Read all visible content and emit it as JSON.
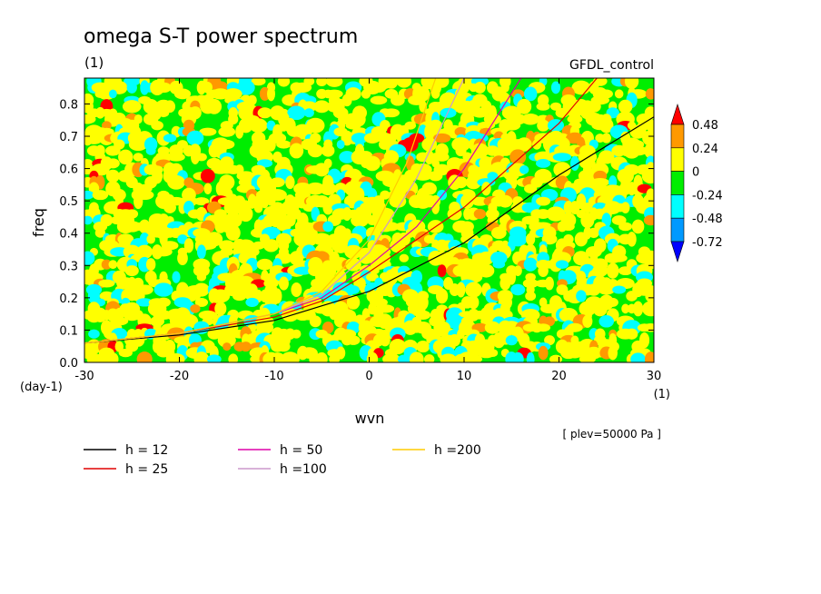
{
  "chart_data": {
    "type": "heatmap",
    "title": "omega S-T power spectrum",
    "subtitle_left": "(1)",
    "subtitle_right": "GFDL_control",
    "xlabel": "wvn",
    "ylabel": "freq",
    "x_units": "(1)",
    "y_units": "(day-1)",
    "annotation": "[ plev=50000 Pa ]",
    "xlim": [
      -30,
      30
    ],
    "ylim": [
      0.0,
      0.88
    ],
    "x_ticks": [
      "-30",
      "-20",
      "-10",
      "0",
      "10",
      "20",
      "30"
    ],
    "y_ticks": [
      "0.0",
      "0.1",
      "0.2",
      "0.3",
      "0.4",
      "0.5",
      "0.6",
      "0.7",
      "0.8"
    ],
    "x_tick_values": [
      -30,
      -20,
      -10,
      0,
      10,
      20,
      30
    ],
    "y_tick_values": [
      0.0,
      0.1,
      0.2,
      0.3,
      0.4,
      0.5,
      0.6,
      0.7,
      0.8
    ],
    "colorbar": {
      "levels": [
        "0.48",
        "0.24",
        "0",
        "-0.24",
        "-0.48",
        "-0.72"
      ],
      "colors": [
        "#ff0000",
        "#ff9900",
        "#ffff00",
        "#00ee00",
        "#00ffff",
        "#0099ff",
        "#0000ff"
      ],
      "extend": "both"
    },
    "field_description_colors": {
      "dominant": "#00ee00",
      "secondary": "#ffff00",
      "sparse": [
        "#00ffff",
        "#ff9900",
        "#ff0000"
      ]
    },
    "series": [
      {
        "name": "h = 12",
        "color": "#000000",
        "points": [
          [
            -30,
            0.06
          ],
          [
            -20,
            0.085
          ],
          [
            -10,
            0.13
          ],
          [
            0,
            0.22
          ],
          [
            10,
            0.37
          ],
          [
            20,
            0.58
          ],
          [
            30,
            0.76
          ]
        ]
      },
      {
        "name": "h = 25",
        "color": "#e00000",
        "points": [
          [
            -30,
            0.06
          ],
          [
            -20,
            0.09
          ],
          [
            -10,
            0.14
          ],
          [
            -5,
            0.19
          ],
          [
            0,
            0.28
          ],
          [
            10,
            0.48
          ],
          [
            20,
            0.74
          ],
          [
            24,
            0.88
          ]
        ]
      },
      {
        "name": "h = 50",
        "color": "#dd00aa",
        "points": [
          [
            -30,
            0.06
          ],
          [
            -20,
            0.09
          ],
          [
            -10,
            0.15
          ],
          [
            -5,
            0.2
          ],
          [
            0,
            0.3
          ],
          [
            5,
            0.42
          ],
          [
            10,
            0.6
          ],
          [
            16,
            0.88
          ]
        ]
      },
      {
        "name": "h =100",
        "color": "#cc99cc",
        "points": [
          [
            -30,
            0.06
          ],
          [
            -20,
            0.09
          ],
          [
            -10,
            0.15
          ],
          [
            -5,
            0.21
          ],
          [
            0,
            0.34
          ],
          [
            5,
            0.57
          ],
          [
            10,
            0.88
          ]
        ]
      },
      {
        "name": "h =200",
        "color": "#ffcc00",
        "points": [
          [
            -30,
            0.06
          ],
          [
            -20,
            0.09
          ],
          [
            -10,
            0.15
          ],
          [
            -5,
            0.22
          ],
          [
            0,
            0.38
          ],
          [
            4,
            0.62
          ],
          [
            7,
            0.88
          ]
        ]
      }
    ]
  }
}
